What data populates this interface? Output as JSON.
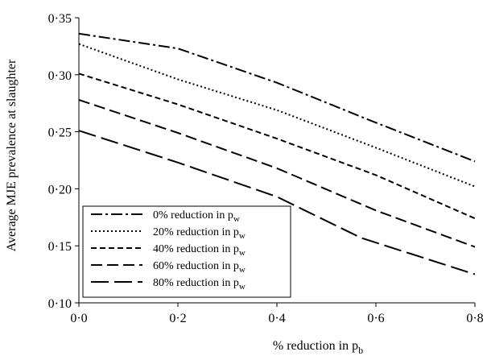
{
  "chart_data": {
    "type": "line",
    "xlabel": "% reduction in p",
    "xlabel_sub": "b",
    "ylabel": "Average MJE prevalence at slaughter",
    "xlim": [
      0,
      0.8
    ],
    "ylim": [
      0.1,
      0.35
    ],
    "x_ticks": [
      0,
      0.2,
      0.4,
      0.6,
      0.8
    ],
    "x_tick_labels": [
      "0·0",
      "0·2",
      "0·4",
      "0·6",
      "0·8"
    ],
    "y_ticks": [
      0.1,
      0.15,
      0.2,
      0.25,
      0.3,
      0.35
    ],
    "y_tick_labels": [
      "0·10",
      "0·15",
      "0·20",
      "0·25",
      "0·30",
      "0·35"
    ],
    "grid": false,
    "legend_position": "bottom-left",
    "series": [
      {
        "name": "0% reduction in p",
        "name_sub": "w",
        "dash": "14,4,3,4",
        "x": [
          0,
          0.2,
          0.4,
          0.6,
          0.8
        ],
        "y": [
          0.336,
          0.323,
          0.293,
          0.258,
          0.224
        ]
      },
      {
        "name": "20% reduction in p",
        "name_sub": "w",
        "dash": "2,3",
        "x": [
          0,
          0.2,
          0.4,
          0.6,
          0.8
        ],
        "y": [
          0.327,
          0.296,
          0.269,
          0.236,
          0.202
        ]
      },
      {
        "name": "40% reduction in p",
        "name_sub": "w",
        "dash": "7,4",
        "x": [
          0,
          0.2,
          0.4,
          0.6,
          0.8
        ],
        "y": [
          0.301,
          0.274,
          0.244,
          0.212,
          0.174
        ]
      },
      {
        "name": "60% reduction in p",
        "name_sub": "w",
        "dash": "14,6",
        "x": [
          0,
          0.2,
          0.4,
          0.6,
          0.8
        ],
        "y": [
          0.278,
          0.249,
          0.218,
          0.181,
          0.149
        ]
      },
      {
        "name": "80% reduction in p",
        "name_sub": "w",
        "dash": "22,7",
        "x": [
          0,
          0.2,
          0.4,
          0.57,
          0.8
        ],
        "y": [
          0.251,
          0.223,
          0.193,
          0.157,
          0.125
        ]
      }
    ]
  }
}
